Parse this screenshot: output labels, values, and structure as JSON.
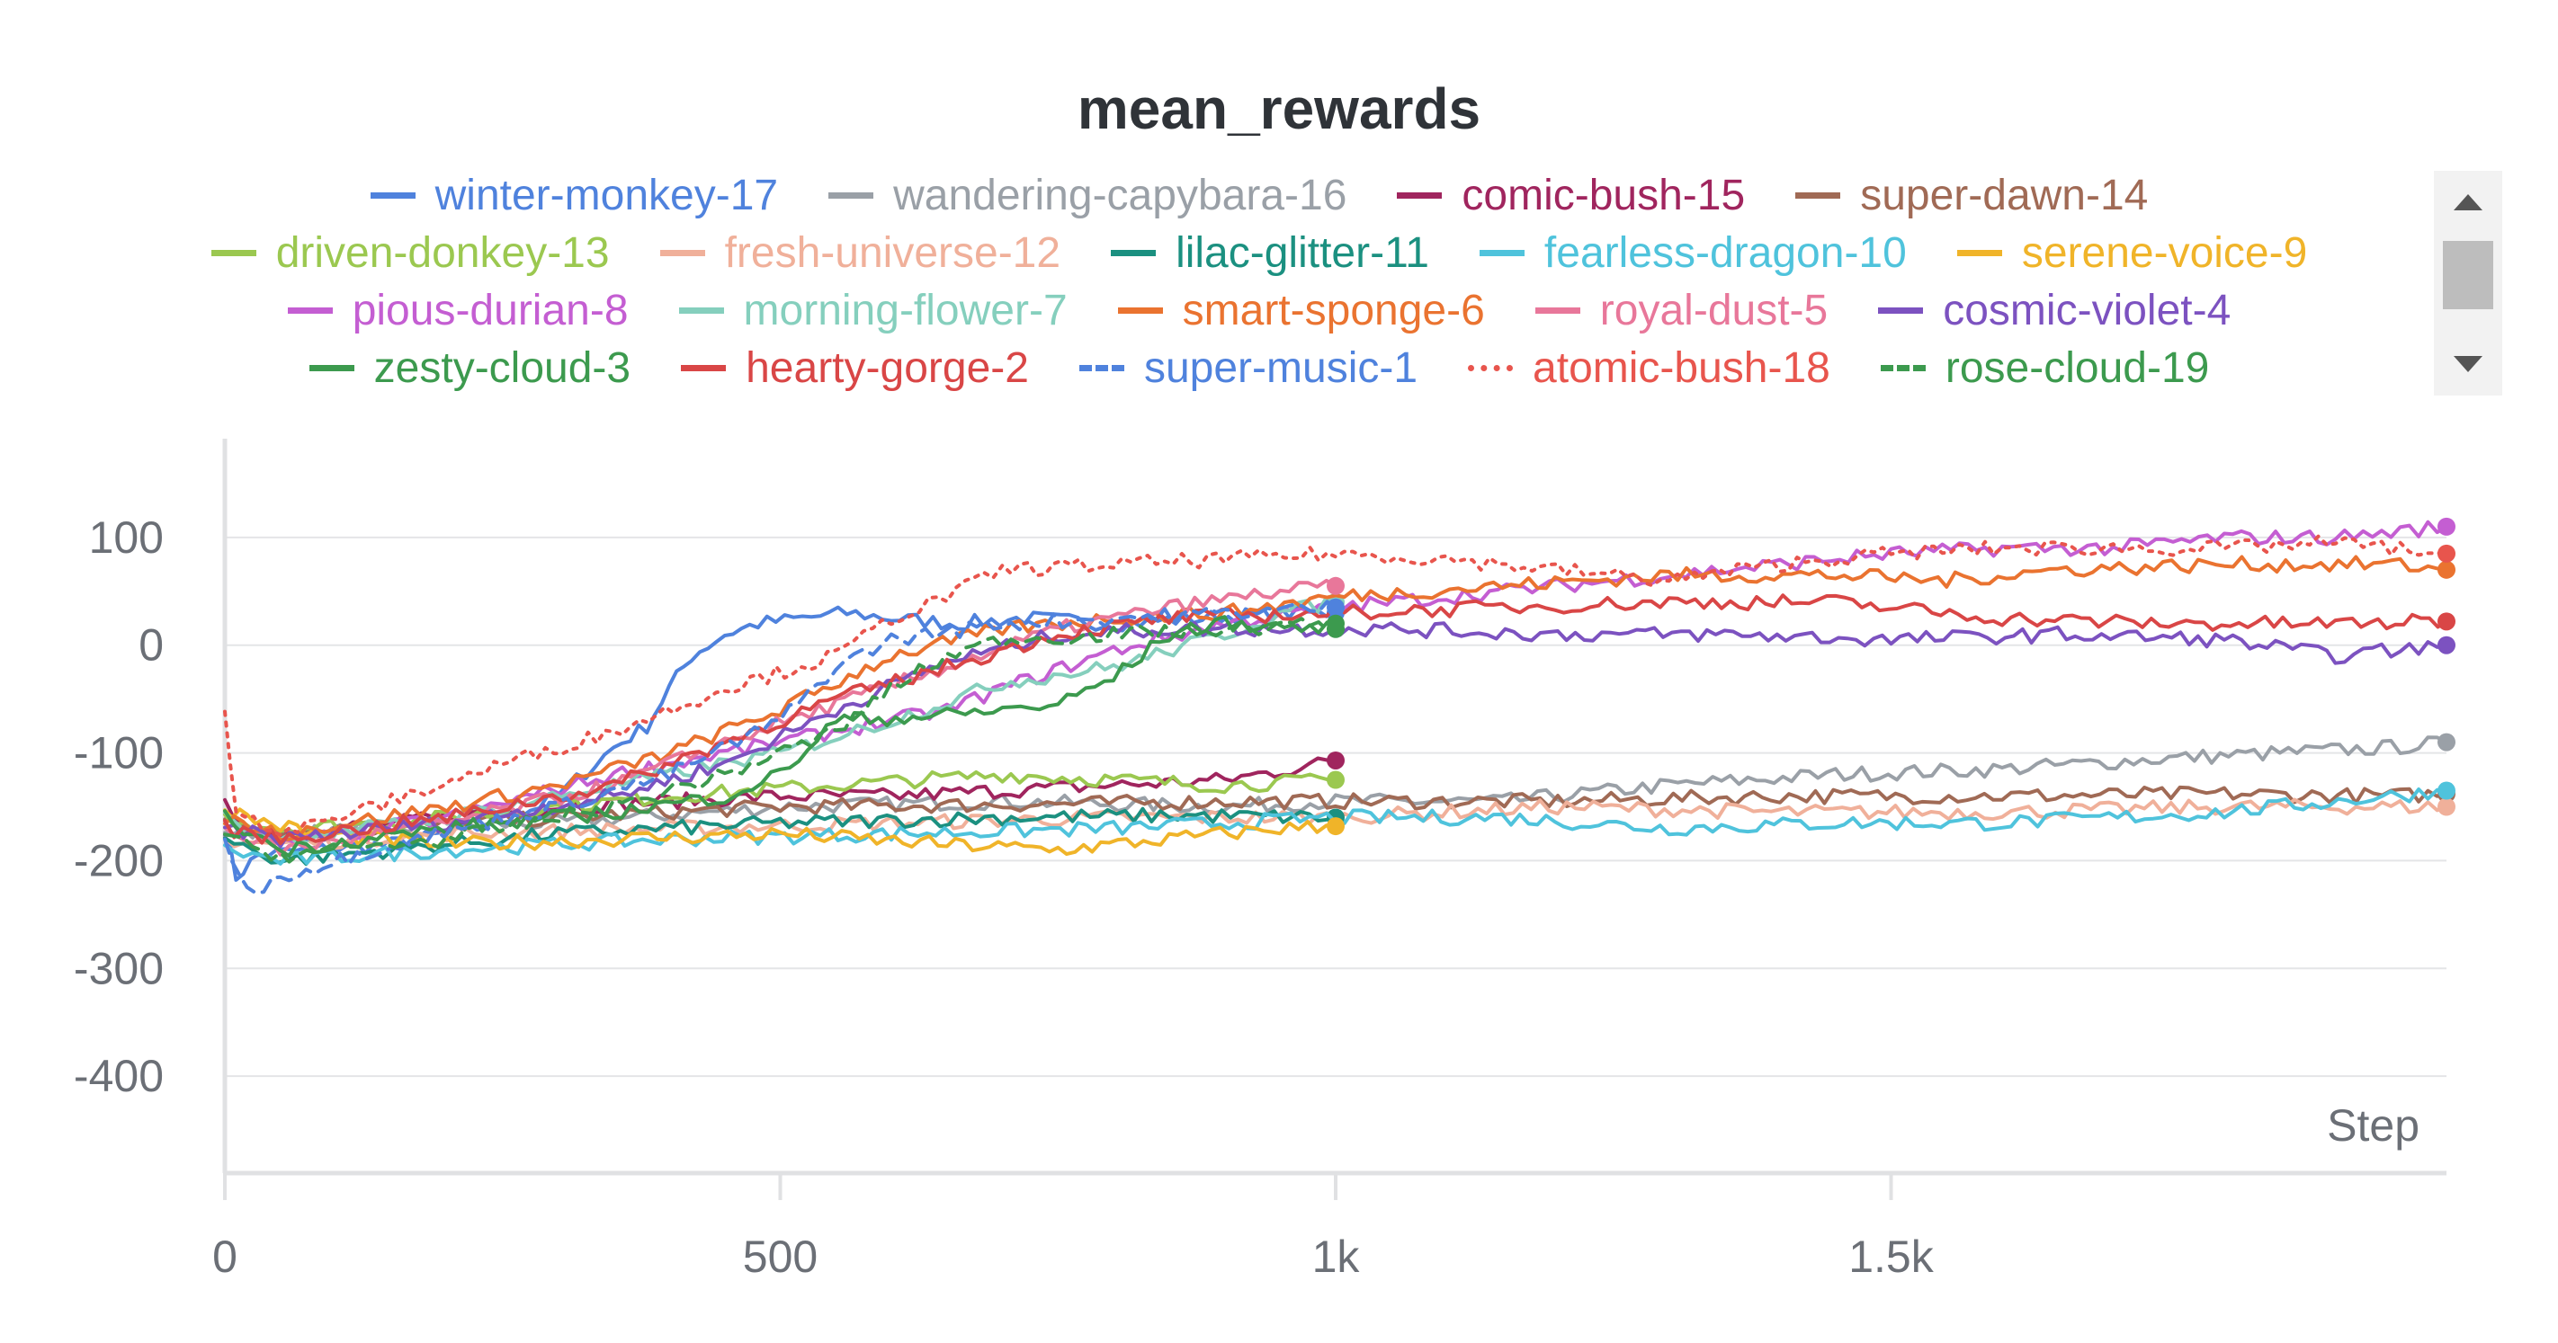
{
  "chart_data": {
    "type": "line",
    "title": "mean_rewards",
    "xlabel": "Step",
    "ylabel": "",
    "xlim": [
      0,
      2000
    ],
    "ylim": [
      -490,
      190
    ],
    "x_ticks": [
      0,
      500,
      1000,
      1500
    ],
    "x_tick_labels": [
      "0",
      "500",
      "1k",
      "1.5k"
    ],
    "y_ticks": [
      100,
      0,
      -100,
      -200,
      -300,
      -400
    ],
    "y_tick_labels": [
      "100",
      "0",
      "-100",
      "-200",
      "-300",
      "-400"
    ],
    "grid": true,
    "legend_position": "top",
    "series": [
      {
        "name": "winter-monkey-17",
        "color": "#4f82dd",
        "dash": "solid",
        "points": [
          [
            0,
            -170
          ],
          [
            10,
            -215
          ],
          [
            30,
            -195
          ],
          [
            80,
            -190
          ],
          [
            150,
            -185
          ],
          [
            250,
            -165
          ],
          [
            300,
            -140
          ],
          [
            350,
            -95
          ],
          [
            380,
            -75
          ],
          [
            400,
            -40
          ],
          [
            420,
            -10
          ],
          [
            450,
            10
          ],
          [
            480,
            20
          ],
          [
            520,
            25
          ],
          [
            560,
            30
          ],
          [
            600,
            25
          ],
          [
            660,
            20
          ],
          [
            720,
            25
          ],
          [
            800,
            20
          ],
          [
            880,
            25
          ],
          [
            950,
            30
          ],
          [
            1000,
            30
          ]
        ]
      },
      {
        "name": "wandering-capybara-16",
        "color": "#9aa0a7",
        "dash": "solid",
        "points": [
          [
            0,
            -170
          ],
          [
            50,
            -175
          ],
          [
            150,
            -170
          ],
          [
            300,
            -165
          ],
          [
            500,
            -150
          ],
          [
            700,
            -145
          ],
          [
            900,
            -150
          ],
          [
            1000,
            -145
          ],
          [
            1150,
            -145
          ],
          [
            1300,
            -130
          ],
          [
            1450,
            -120
          ],
          [
            1600,
            -115
          ],
          [
            1750,
            -105
          ],
          [
            1850,
            -100
          ],
          [
            1950,
            -95
          ],
          [
            2000,
            -90
          ]
        ]
      },
      {
        "name": "comic-bush-15",
        "color": "#a0255e",
        "dash": "solid",
        "points": [
          [
            0,
            -150
          ],
          [
            30,
            -175
          ],
          [
            100,
            -170
          ],
          [
            200,
            -160
          ],
          [
            300,
            -150
          ],
          [
            400,
            -145
          ],
          [
            500,
            -140
          ],
          [
            600,
            -140
          ],
          [
            700,
            -135
          ],
          [
            800,
            -130
          ],
          [
            900,
            -125
          ],
          [
            960,
            -115
          ],
          [
            1000,
            -107
          ]
        ]
      },
      {
        "name": "super-dawn-14",
        "color": "#a06a55",
        "dash": "solid",
        "points": [
          [
            0,
            -160
          ],
          [
            50,
            -175
          ],
          [
            150,
            -170
          ],
          [
            300,
            -160
          ],
          [
            500,
            -150
          ],
          [
            700,
            -148
          ],
          [
            900,
            -145
          ],
          [
            1000,
            -145
          ],
          [
            1200,
            -145
          ],
          [
            1400,
            -140
          ],
          [
            1600,
            -140
          ],
          [
            1800,
            -138
          ],
          [
            1950,
            -140
          ],
          [
            2000,
            -138
          ]
        ]
      },
      {
        "name": "driven-donkey-13",
        "color": "#9bc850",
        "dash": "solid",
        "points": [
          [
            0,
            -160
          ],
          [
            50,
            -170
          ],
          [
            150,
            -165
          ],
          [
            300,
            -150
          ],
          [
            400,
            -140
          ],
          [
            550,
            -130
          ],
          [
            700,
            -120
          ],
          [
            800,
            -125
          ],
          [
            900,
            -130
          ],
          [
            1000,
            -125
          ]
        ]
      },
      {
        "name": "fresh-universe-12",
        "color": "#f0b09a",
        "dash": "solid",
        "points": [
          [
            0,
            -180
          ],
          [
            50,
            -185
          ],
          [
            200,
            -175
          ],
          [
            400,
            -170
          ],
          [
            600,
            -165
          ],
          [
            800,
            -160
          ],
          [
            1000,
            -160
          ],
          [
            1200,
            -150
          ],
          [
            1400,
            -155
          ],
          [
            1600,
            -155
          ],
          [
            1800,
            -150
          ],
          [
            1950,
            -150
          ],
          [
            2000,
            -150
          ]
        ]
      },
      {
        "name": "lilac-glitter-11",
        "color": "#1b9080",
        "dash": "solid",
        "points": [
          [
            0,
            -180
          ],
          [
            50,
            -200
          ],
          [
            150,
            -190
          ],
          [
            300,
            -175
          ],
          [
            500,
            -165
          ],
          [
            700,
            -160
          ],
          [
            850,
            -158
          ],
          [
            1000,
            -160
          ]
        ]
      },
      {
        "name": "fearless-dragon-10",
        "color": "#4fc3dc",
        "dash": "solid",
        "points": [
          [
            0,
            -190
          ],
          [
            50,
            -200
          ],
          [
            200,
            -190
          ],
          [
            400,
            -180
          ],
          [
            600,
            -175
          ],
          [
            800,
            -170
          ],
          [
            1000,
            -160
          ],
          [
            1150,
            -160
          ],
          [
            1300,
            -170
          ],
          [
            1450,
            -165
          ],
          [
            1600,
            -165
          ],
          [
            1800,
            -155
          ],
          [
            1950,
            -140
          ],
          [
            2000,
            -135
          ]
        ]
      },
      {
        "name": "serene-voice-9",
        "color": "#f0b429",
        "dash": "solid",
        "points": [
          [
            0,
            -150
          ],
          [
            20,
            -160
          ],
          [
            80,
            -175
          ],
          [
            200,
            -185
          ],
          [
            350,
            -180
          ],
          [
            500,
            -175
          ],
          [
            650,
            -185
          ],
          [
            750,
            -190
          ],
          [
            850,
            -180
          ],
          [
            950,
            -170
          ],
          [
            1000,
            -168
          ]
        ]
      },
      {
        "name": "pious-durian-8",
        "color": "#c45ed2",
        "dash": "solid",
        "points": [
          [
            0,
            -170
          ],
          [
            50,
            -185
          ],
          [
            200,
            -160
          ],
          [
            350,
            -120
          ],
          [
            500,
            -90
          ],
          [
            650,
            -60
          ],
          [
            700,
            -40
          ],
          [
            800,
            -5
          ],
          [
            900,
            20
          ],
          [
            1000,
            35
          ],
          [
            1100,
            45
          ],
          [
            1200,
            55
          ],
          [
            1300,
            65
          ],
          [
            1400,
            75
          ],
          [
            1500,
            85
          ],
          [
            1600,
            90
          ],
          [
            1700,
            90
          ],
          [
            1800,
            100
          ],
          [
            1900,
            100
          ],
          [
            1950,
            105
          ],
          [
            2000,
            110
          ]
        ]
      },
      {
        "name": "morning-flower-7",
        "color": "#85cfbd",
        "dash": "solid",
        "points": [
          [
            0,
            -160
          ],
          [
            50,
            -180
          ],
          [
            200,
            -160
          ],
          [
            350,
            -130
          ],
          [
            500,
            -100
          ],
          [
            600,
            -70
          ],
          [
            700,
            -35
          ],
          [
            800,
            -20
          ],
          [
            900,
            10
          ],
          [
            950,
            30
          ],
          [
            1000,
            40
          ]
        ]
      },
      {
        "name": "smart-sponge-6",
        "color": "#ea7330",
        "dash": "solid",
        "points": [
          [
            0,
            -160
          ],
          [
            50,
            -175
          ],
          [
            200,
            -150
          ],
          [
            300,
            -130
          ],
          [
            400,
            -100
          ],
          [
            500,
            -60
          ],
          [
            600,
            -10
          ],
          [
            700,
            15
          ],
          [
            800,
            25
          ],
          [
            900,
            30
          ],
          [
            1000,
            45
          ],
          [
            1150,
            55
          ],
          [
            1300,
            65
          ],
          [
            1450,
            65
          ],
          [
            1550,
            60
          ],
          [
            1650,
            70
          ],
          [
            1800,
            75
          ],
          [
            1950,
            75
          ],
          [
            2000,
            70
          ]
        ]
      },
      {
        "name": "royal-dust-5",
        "color": "#e8779a",
        "dash": "solid",
        "points": [
          [
            0,
            -170
          ],
          [
            50,
            -190
          ],
          [
            200,
            -165
          ],
          [
            350,
            -130
          ],
          [
            450,
            -90
          ],
          [
            550,
            -55
          ],
          [
            650,
            -20
          ],
          [
            750,
            15
          ],
          [
            850,
            35
          ],
          [
            950,
            50
          ],
          [
            1000,
            55
          ]
        ]
      },
      {
        "name": "cosmic-violet-4",
        "color": "#7c52c0",
        "dash": "solid",
        "points": [
          [
            0,
            -170
          ],
          [
            50,
            -180
          ],
          [
            200,
            -165
          ],
          [
            350,
            -140
          ],
          [
            450,
            -110
          ],
          [
            550,
            -60
          ],
          [
            650,
            -15
          ],
          [
            750,
            10
          ],
          [
            850,
            15
          ],
          [
            950,
            15
          ],
          [
            1050,
            15
          ],
          [
            1200,
            10
          ],
          [
            1350,
            10
          ],
          [
            1500,
            5
          ],
          [
            1650,
            10
          ],
          [
            1800,
            5
          ],
          [
            1900,
            -10
          ],
          [
            1950,
            -5
          ],
          [
            2000,
            0
          ]
        ]
      },
      {
        "name": "zesty-cloud-3",
        "color": "#3c9a4e",
        "dash": "solid",
        "points": [
          [
            0,
            -160
          ],
          [
            50,
            -190
          ],
          [
            200,
            -170
          ],
          [
            350,
            -155
          ],
          [
            450,
            -140
          ],
          [
            500,
            -120
          ],
          [
            550,
            -70
          ],
          [
            650,
            -65
          ],
          [
            700,
            -60
          ],
          [
            750,
            -55
          ],
          [
            800,
            -30
          ],
          [
            850,
            10
          ],
          [
            900,
            20
          ],
          [
            1000,
            15
          ]
        ]
      },
      {
        "name": "hearty-gorge-2",
        "color": "#d94646",
        "dash": "solid",
        "points": [
          [
            0,
            -170
          ],
          [
            50,
            -180
          ],
          [
            200,
            -160
          ],
          [
            350,
            -130
          ],
          [
            450,
            -90
          ],
          [
            550,
            -50
          ],
          [
            650,
            -20
          ],
          [
            750,
            10
          ],
          [
            850,
            25
          ],
          [
            1000,
            30
          ],
          [
            1150,
            35
          ],
          [
            1300,
            40
          ],
          [
            1450,
            40
          ],
          [
            1600,
            25
          ],
          [
            1750,
            20
          ],
          [
            1900,
            20
          ],
          [
            2000,
            22
          ]
        ]
      },
      {
        "name": "super-music-1",
        "color": "#4f82dd",
        "dash": "dashed",
        "points": [
          [
            0,
            -180
          ],
          [
            20,
            -230
          ],
          [
            50,
            -215
          ],
          [
            150,
            -185
          ],
          [
            300,
            -150
          ],
          [
            400,
            -120
          ],
          [
            500,
            -70
          ],
          [
            550,
            -20
          ],
          [
            600,
            5
          ],
          [
            700,
            20
          ],
          [
            800,
            25
          ],
          [
            900,
            30
          ],
          [
            1000,
            35
          ]
        ]
      },
      {
        "name": "atomic-bush-18",
        "color": "#e8554d",
        "dash": "dotted",
        "points": [
          [
            0,
            -60
          ],
          [
            10,
            -150
          ],
          [
            50,
            -175
          ],
          [
            150,
            -145
          ],
          [
            250,
            -110
          ],
          [
            350,
            -80
          ],
          [
            450,
            -40
          ],
          [
            550,
            -10
          ],
          [
            600,
            25
          ],
          [
            650,
            45
          ],
          [
            700,
            70
          ],
          [
            800,
            75
          ],
          [
            900,
            80
          ],
          [
            1000,
            85
          ],
          [
            1100,
            80
          ],
          [
            1200,
            70
          ],
          [
            1300,
            60
          ],
          [
            1400,
            75
          ],
          [
            1500,
            85
          ],
          [
            1600,
            90
          ],
          [
            1700,
            90
          ],
          [
            1800,
            90
          ],
          [
            1900,
            95
          ],
          [
            1950,
            90
          ],
          [
            2000,
            85
          ]
        ]
      },
      {
        "name": "rose-cloud-19",
        "color": "#3c9a4e",
        "dash": "dashed",
        "points": [
          [
            0,
            -180
          ],
          [
            50,
            -195
          ],
          [
            200,
            -180
          ],
          [
            350,
            -150
          ],
          [
            450,
            -120
          ],
          [
            550,
            -80
          ],
          [
            600,
            -40
          ],
          [
            650,
            -10
          ],
          [
            700,
            5
          ],
          [
            800,
            10
          ],
          [
            900,
            15
          ],
          [
            1000,
            20
          ]
        ]
      }
    ]
  }
}
